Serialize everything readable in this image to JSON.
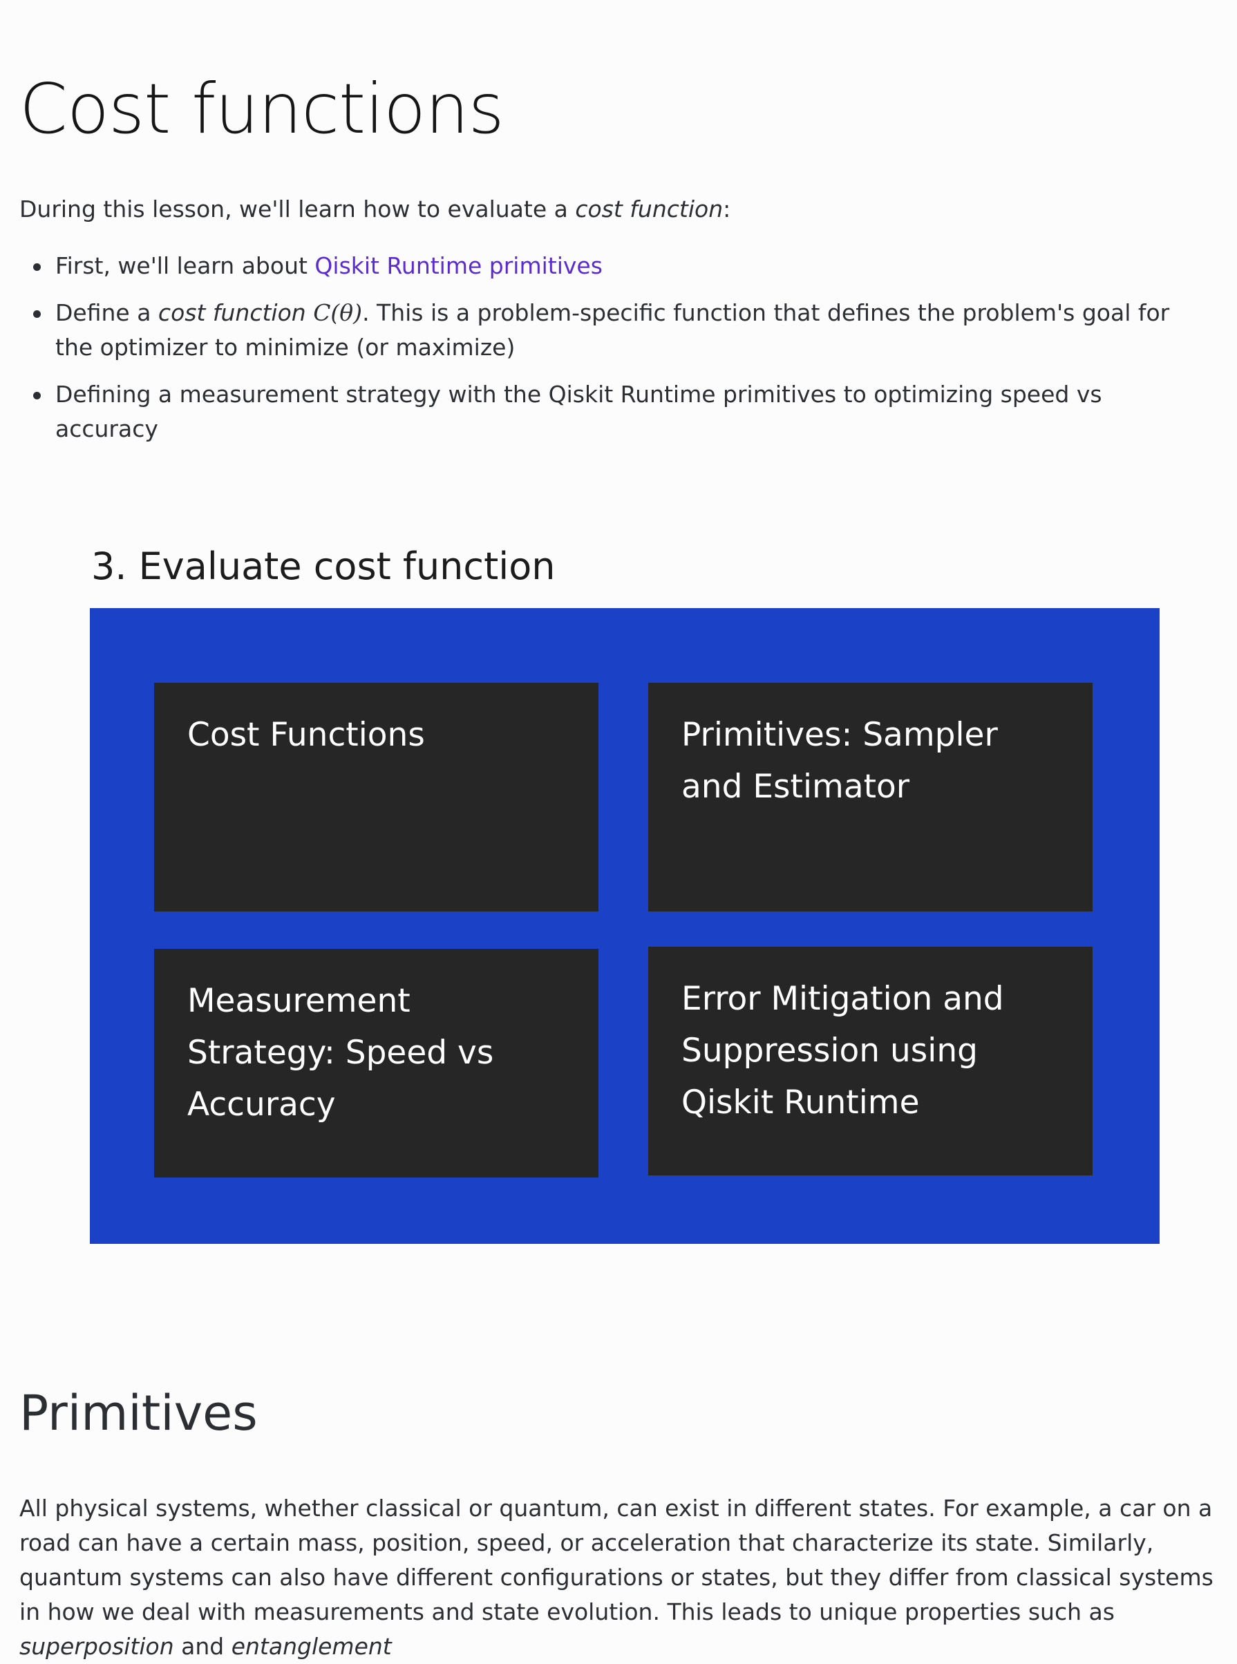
{
  "page": {
    "title": "Cost functions",
    "intro": {
      "text_before": "During this lesson, we'll learn how to evaluate a ",
      "emphasis": "cost function",
      "text_after": ":"
    },
    "goals": [
      {
        "text_before": "First, we'll learn about ",
        "link_text": "Qiskit Runtime primitives"
      },
      {
        "text_before": "Define a ",
        "emphasis": "cost function",
        "math": "C(θ)",
        "text_after": ". This is a problem-specific function that defines the problem's goal for the optimizer to minimize (or maximize)"
      },
      {
        "text": "Defining a measurement strategy with the Qiskit Runtime primitives to optimizing speed vs accuracy"
      }
    ]
  },
  "diagram": {
    "title": "3. Evaluate cost function",
    "background_color": "#1b42c6",
    "card_color": "#262626",
    "cards": [
      {
        "label": "Cost Functions"
      },
      {
        "label": "Primitives: Sampler and Estimator"
      },
      {
        "label": "Measurement Strategy: Speed vs Accuracy"
      },
      {
        "label": "Error Mitigation and Suppression using Qiskit Runtime"
      }
    ]
  },
  "primitives_section": {
    "heading": "Primitives",
    "paragraph_part1": "All physical systems, whether classical or quantum, can exist in different states. For example, a car on a road can have a certain mass, position, speed, or acceleration that characterize its state. Similarly, quantum systems can also have different configurations or states, but they differ from classical systems in how we deal with measurements and state evolution. This leads to unique properties such as ",
    "emphasis1": "superposition",
    "paragraph_part2": " and ",
    "emphasis2": "entanglement"
  }
}
